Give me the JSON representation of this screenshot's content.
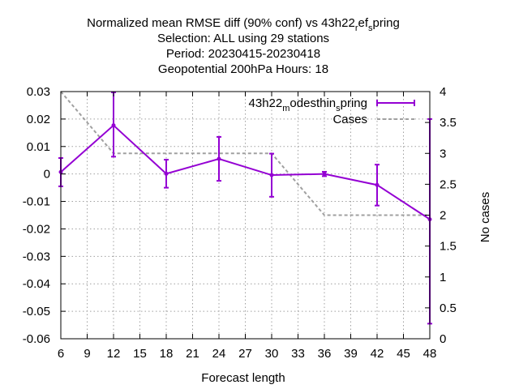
{
  "title": {
    "line1": "Normalized mean RMSE diff (90% conf) vs 43h22",
    "line1_sub1": "r",
    "line1_mid": "ef",
    "line1_sub2": "s",
    "line1_end": "pring",
    "line2": "Selection: ALL using    29 stations",
    "line3": "Period: 20230415-20230418",
    "line4": "Geopotential 200hPa   Hours:  18"
  },
  "chart_data": {
    "type": "line",
    "xlabel": "Forecast length",
    "ylabel": "",
    "y2label": "No cases",
    "xlim": [
      6,
      48
    ],
    "ylim": [
      -0.06,
      0.03
    ],
    "y2lim": [
      0,
      4
    ],
    "x_ticks": [
      "6",
      "9",
      "12",
      "15",
      "18",
      "21",
      "24",
      "27",
      "30",
      "33",
      "36",
      "39",
      "42",
      "45",
      "48"
    ],
    "y_ticks": [
      "0.03",
      "0.02",
      "0.01",
      "0",
      "-0.01",
      "-0.02",
      "-0.03",
      "-0.04",
      "-0.05",
      "-0.06"
    ],
    "y2_ticks": [
      "4",
      "3.5",
      "3",
      "2.5",
      "2",
      "1.5",
      "1",
      "0.5",
      "0"
    ],
    "grid": true,
    "legend_position": "top-right",
    "series": [
      {
        "name_main": "43h22",
        "name_sub1": "m",
        "name_mid": "odesthin",
        "name_sub2": "s",
        "name_end": "pring",
        "color": "#9400d3",
        "axis": "y",
        "points": [
          {
            "x": 6,
            "y": 0.0007,
            "lo": -0.0045,
            "hi": 0.0058
          },
          {
            "x": 12,
            "y": 0.0177,
            "lo": 0.0063,
            "hi": 0.0297
          },
          {
            "x": 18,
            "y": 0.0001,
            "lo": -0.005,
            "hi": 0.0052
          },
          {
            "x": 24,
            "y": 0.0055,
            "lo": -0.0025,
            "hi": 0.0135
          },
          {
            "x": 30,
            "y": -0.0004,
            "lo": -0.0083,
            "hi": 0.0074
          },
          {
            "x": 36,
            "y": 0.0,
            "lo": -0.0008,
            "hi": 0.0008
          },
          {
            "x": 42,
            "y": -0.004,
            "lo": -0.0115,
            "hi": 0.0034
          },
          {
            "x": 48,
            "y": -0.0165,
            "lo": -0.0545,
            "hi": 0.02
          }
        ]
      },
      {
        "name": "Cases",
        "color": "#a0a0a0",
        "axis": "y2",
        "points": [
          {
            "x": 6,
            "y": 4
          },
          {
            "x": 12,
            "y": 3
          },
          {
            "x": 18,
            "y": 3
          },
          {
            "x": 24,
            "y": 3
          },
          {
            "x": 30,
            "y": 3
          },
          {
            "x": 36,
            "y": 2
          },
          {
            "x": 42,
            "y": 2
          },
          {
            "x": 48,
            "y": 2
          }
        ]
      }
    ]
  }
}
